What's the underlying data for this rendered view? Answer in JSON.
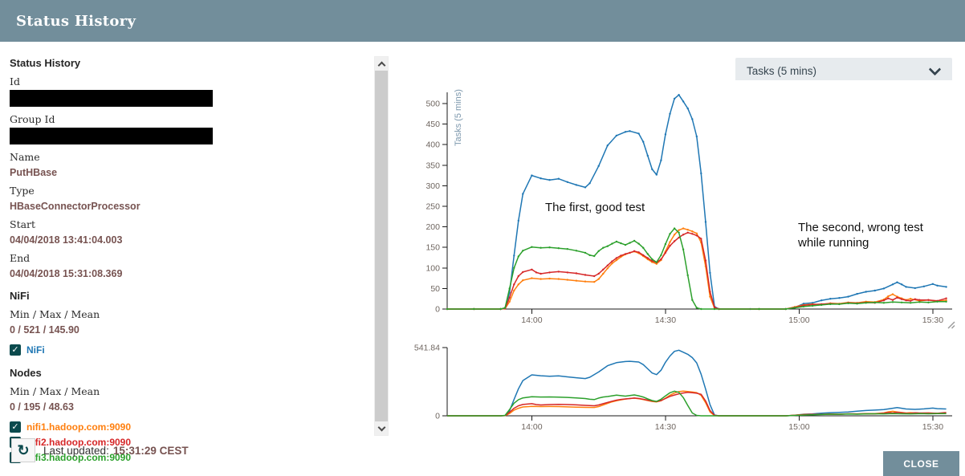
{
  "dialog": {
    "title": "Status History"
  },
  "sidebar": {
    "heading": "Status History",
    "fields": [
      {
        "label": "Id"
      },
      {
        "label": "Group Id"
      },
      {
        "label": "Name",
        "value": "PutHBase"
      },
      {
        "label": "Type",
        "value": "HBaseConnectorProcessor"
      },
      {
        "label": "Start",
        "value": "04/04/2018 13:41:04.003"
      },
      {
        "label": "End",
        "value": "04/04/2018 15:31:08.369"
      }
    ],
    "nifi_section": {
      "heading": "NiFi",
      "stat_label": "Min / Max / Mean",
      "stat_value": "0 / 521 / 145.90",
      "checkbox": {
        "label": "NiFi",
        "checked": true,
        "color": "#1f77b4",
        "check_glyph": "✓"
      }
    },
    "nodes_section": {
      "heading": "Nodes",
      "stat_label": "Min / Max / Mean",
      "stat_value": "0 / 195 / 48.63",
      "checkboxes": [
        {
          "label": "nifi1.hadoop.com:9090",
          "checked": true,
          "color": "#ff7f0e",
          "check_glyph": "✓"
        },
        {
          "label": "nifi2.hadoop.com:9090",
          "checked": true,
          "color": "#d62728",
          "check_glyph": "✓"
        },
        {
          "label": "nifi3.hadoop.com:9090",
          "checked": true,
          "color": "#2ca02c",
          "check_glyph": "✓"
        }
      ]
    },
    "last_updated_label": "Last updated:",
    "last_updated_value": "15:31:29 CEST",
    "refresh_icon_glyph": "↻"
  },
  "toolbar": {
    "metric_select": "Tasks (5 mins)"
  },
  "close_label": "CLOSE",
  "annotations": [
    {
      "text": "The first, good test"
    },
    {
      "line1": "The second, wrong test",
      "line2": "while running"
    }
  ],
  "chart_data": {
    "type": "line",
    "title": "Status History",
    "ylabel": "Tasks (5 mins)",
    "x_unit": "minutes after 13:41",
    "x_ticks": [
      {
        "t": 19,
        "label": "14:00"
      },
      {
        "t": 49,
        "label": "14:30"
      },
      {
        "t": 79,
        "label": "15:00"
      },
      {
        "t": 109,
        "label": "15:30"
      }
    ],
    "main_ylim": [
      0,
      500
    ],
    "main_ytick_step": 50,
    "overview_ylim": [
      0,
      541.84
    ],
    "overview_ymax_label": "541.84",
    "overview_ymin_label": "0",
    "grid": false,
    "legend_position": "sidebar-checkboxes",
    "series": [
      {
        "name": "NiFi",
        "color": "#1f77b4",
        "points": [
          [
            0,
            0
          ],
          [
            6,
            0
          ],
          [
            12,
            0
          ],
          [
            13,
            2
          ],
          [
            14,
            40
          ],
          [
            15,
            130
          ],
          [
            16,
            215
          ],
          [
            17,
            280
          ],
          [
            19,
            325
          ],
          [
            21,
            318
          ],
          [
            23,
            314
          ],
          [
            25,
            317
          ],
          [
            27,
            309
          ],
          [
            29,
            302
          ],
          [
            31,
            296
          ],
          [
            32,
            306
          ],
          [
            34,
            348
          ],
          [
            36,
            398
          ],
          [
            38,
            422
          ],
          [
            40,
            431
          ],
          [
            41,
            433
          ],
          [
            43,
            427
          ],
          [
            44,
            407
          ],
          [
            45,
            373
          ],
          [
            46,
            340
          ],
          [
            47,
            327
          ],
          [
            48,
            362
          ],
          [
            49,
            425
          ],
          [
            50,
            475
          ],
          [
            51,
            512
          ],
          [
            52,
            521
          ],
          [
            53,
            505
          ],
          [
            54,
            488
          ],
          [
            55,
            462
          ],
          [
            56,
            420
          ],
          [
            57,
            330
          ],
          [
            58,
            212
          ],
          [
            59,
            88
          ],
          [
            60,
            6
          ],
          [
            61,
            0
          ],
          [
            68,
            0
          ],
          [
            76,
            0
          ],
          [
            78,
            4
          ],
          [
            80,
            13
          ],
          [
            82,
            15
          ],
          [
            84,
            21
          ],
          [
            86,
            25
          ],
          [
            88,
            27
          ],
          [
            90,
            30
          ],
          [
            92,
            37
          ],
          [
            94,
            42
          ],
          [
            96,
            45
          ],
          [
            98,
            50
          ],
          [
            100,
            60
          ],
          [
            101,
            65
          ],
          [
            102,
            60
          ],
          [
            103,
            54
          ],
          [
            105,
            51
          ],
          [
            107,
            55
          ],
          [
            109,
            61
          ],
          [
            110,
            57
          ],
          [
            112,
            54
          ]
        ]
      },
      {
        "name": "nifi1.hadoop.com:9090",
        "color": "#ff7f0e",
        "points": [
          [
            0,
            0
          ],
          [
            6,
            0
          ],
          [
            12,
            0
          ],
          [
            13,
            1
          ],
          [
            14,
            18
          ],
          [
            15,
            45
          ],
          [
            16,
            60
          ],
          [
            17,
            70
          ],
          [
            19,
            75
          ],
          [
            21,
            73
          ],
          [
            23,
            74
          ],
          [
            25,
            73
          ],
          [
            27,
            71
          ],
          [
            29,
            69
          ],
          [
            31,
            67
          ],
          [
            33,
            66
          ],
          [
            34,
            73
          ],
          [
            35,
            86
          ],
          [
            36,
            99
          ],
          [
            37,
            111
          ],
          [
            38,
            119
          ],
          [
            39,
            127
          ],
          [
            40,
            133
          ],
          [
            41,
            137
          ],
          [
            42,
            140
          ],
          [
            43,
            136
          ],
          [
            44,
            129
          ],
          [
            45,
            121
          ],
          [
            46,
            114
          ],
          [
            47,
            110
          ],
          [
            48,
            119
          ],
          [
            49,
            140
          ],
          [
            50,
            163
          ],
          [
            51,
            181
          ],
          [
            52,
            192
          ],
          [
            53,
            196
          ],
          [
            54,
            193
          ],
          [
            55,
            189
          ],
          [
            56,
            184
          ],
          [
            57,
            162
          ],
          [
            58,
            104
          ],
          [
            59,
            30
          ],
          [
            60,
            2
          ],
          [
            61,
            0
          ],
          [
            70,
            0
          ],
          [
            76,
            0
          ],
          [
            78,
            5
          ],
          [
            80,
            10
          ],
          [
            82,
            12
          ],
          [
            84,
            11
          ],
          [
            86,
            14
          ],
          [
            88,
            13
          ],
          [
            90,
            16
          ],
          [
            92,
            15
          ],
          [
            94,
            18
          ],
          [
            96,
            17
          ],
          [
            98,
            23
          ],
          [
            99,
            31
          ],
          [
            100,
            36
          ],
          [
            101,
            30
          ],
          [
            102,
            26
          ],
          [
            103,
            22
          ],
          [
            104,
            25
          ],
          [
            106,
            20
          ],
          [
            108,
            22
          ],
          [
            110,
            19
          ],
          [
            112,
            21
          ]
        ]
      },
      {
        "name": "nifi2.hadoop.com:9090",
        "color": "#d62728",
        "points": [
          [
            0,
            0
          ],
          [
            6,
            0
          ],
          [
            12,
            0
          ],
          [
            13,
            1
          ],
          [
            14,
            28
          ],
          [
            15,
            60
          ],
          [
            16,
            80
          ],
          [
            17,
            90
          ],
          [
            19,
            96
          ],
          [
            20,
            89
          ],
          [
            21,
            86
          ],
          [
            23,
            89
          ],
          [
            25,
            91
          ],
          [
            27,
            89
          ],
          [
            29,
            87
          ],
          [
            31,
            83
          ],
          [
            33,
            80
          ],
          [
            34,
            86
          ],
          [
            35,
            96
          ],
          [
            36,
            106
          ],
          [
            37,
            116
          ],
          [
            38,
            124
          ],
          [
            39,
            130
          ],
          [
            40,
            134
          ],
          [
            41,
            137
          ],
          [
            42,
            141
          ],
          [
            43,
            138
          ],
          [
            44,
            131
          ],
          [
            45,
            124
          ],
          [
            46,
            117
          ],
          [
            47,
            113
          ],
          [
            48,
            121
          ],
          [
            49,
            137
          ],
          [
            50,
            154
          ],
          [
            51,
            165
          ],
          [
            52,
            174
          ],
          [
            53,
            181
          ],
          [
            54,
            186
          ],
          [
            55,
            183
          ],
          [
            56,
            179
          ],
          [
            57,
            171
          ],
          [
            58,
            118
          ],
          [
            59,
            42
          ],
          [
            60,
            4
          ],
          [
            61,
            0
          ],
          [
            70,
            0
          ],
          [
            76,
            0
          ],
          [
            78,
            4
          ],
          [
            80,
            9
          ],
          [
            82,
            11
          ],
          [
            84,
            12
          ],
          [
            86,
            13
          ],
          [
            88,
            12
          ],
          [
            90,
            15
          ],
          [
            92,
            14
          ],
          [
            94,
            16
          ],
          [
            96,
            15
          ],
          [
            98,
            21
          ],
          [
            99,
            26
          ],
          [
            100,
            22
          ],
          [
            101,
            28
          ],
          [
            102,
            24
          ],
          [
            103,
            21
          ],
          [
            104,
            20
          ],
          [
            105,
            24
          ],
          [
            106,
            22
          ],
          [
            108,
            22
          ],
          [
            110,
            20
          ],
          [
            112,
            26
          ]
        ]
      },
      {
        "name": "nifi3.hadoop.com:9090",
        "color": "#2ca02c",
        "points": [
          [
            0,
            0
          ],
          [
            6,
            0
          ],
          [
            12,
            0
          ],
          [
            13,
            3
          ],
          [
            14,
            50
          ],
          [
            15,
            100
          ],
          [
            16,
            128
          ],
          [
            17,
            142
          ],
          [
            19,
            151
          ],
          [
            21,
            149
          ],
          [
            23,
            150
          ],
          [
            25,
            148
          ],
          [
            27,
            146
          ],
          [
            29,
            142
          ],
          [
            31,
            137
          ],
          [
            32,
            131
          ],
          [
            33,
            129
          ],
          [
            34,
            141
          ],
          [
            35,
            149
          ],
          [
            36,
            153
          ],
          [
            37,
            159
          ],
          [
            38,
            164
          ],
          [
            39,
            160
          ],
          [
            40,
            156
          ],
          [
            41,
            161
          ],
          [
            42,
            166
          ],
          [
            43,
            159
          ],
          [
            44,
            149
          ],
          [
            45,
            134
          ],
          [
            46,
            121
          ],
          [
            47,
            114
          ],
          [
            48,
            131
          ],
          [
            49,
            158
          ],
          [
            50,
            183
          ],
          [
            51,
            196
          ],
          [
            52,
            186
          ],
          [
            53,
            145
          ],
          [
            54,
            82
          ],
          [
            55,
            22
          ],
          [
            56,
            3
          ],
          [
            57,
            0
          ],
          [
            60,
            0
          ],
          [
            70,
            0
          ],
          [
            76,
            0
          ],
          [
            78,
            3
          ],
          [
            80,
            6
          ],
          [
            82,
            8
          ],
          [
            84,
            10
          ],
          [
            86,
            12
          ],
          [
            88,
            12
          ],
          [
            90,
            14
          ],
          [
            92,
            13
          ],
          [
            94,
            15
          ],
          [
            96,
            16
          ],
          [
            98,
            15
          ],
          [
            100,
            17
          ],
          [
            102,
            16
          ],
          [
            104,
            15
          ],
          [
            106,
            17
          ],
          [
            108,
            16
          ],
          [
            110,
            18
          ],
          [
            112,
            18
          ]
        ]
      }
    ]
  }
}
